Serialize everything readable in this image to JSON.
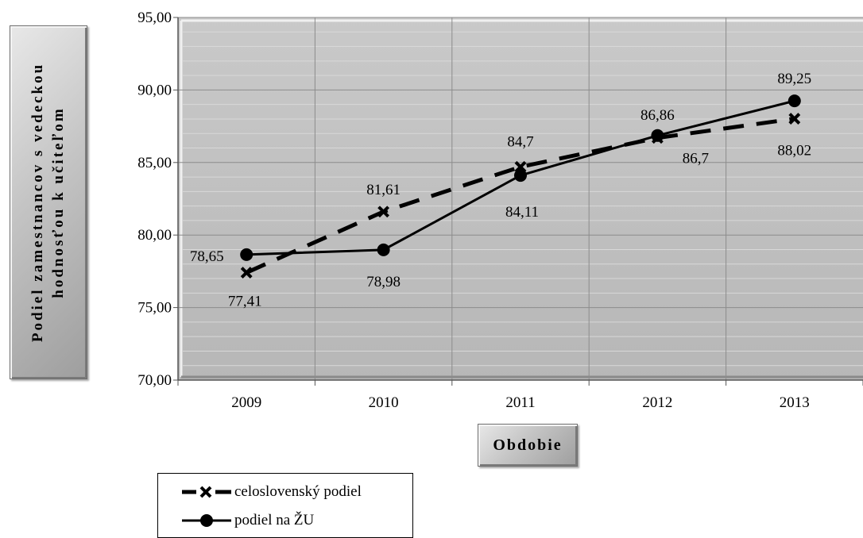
{
  "chart_data": {
    "type": "line",
    "categories": [
      "2009",
      "2010",
      "2011",
      "2012",
      "2013"
    ],
    "ylabel": "Podiel zamestnancov s vedeckou hodnosťou k učiteľom",
    "xlabel": "Obdobie",
    "ylim": [
      70,
      95
    ],
    "yticks": [
      "70,00",
      "75,00",
      "80,00",
      "85,00",
      "90,00",
      "95,00"
    ],
    "grid": true,
    "legend_position": "bottom-left",
    "series": [
      {
        "name": "celoslovenský podiel",
        "style": "dashed",
        "marker": "x",
        "color": "#000000",
        "values": [
          77.41,
          81.61,
          84.7,
          86.7,
          88.02
        ],
        "labels": [
          "77,41",
          "81,61",
          "84,7",
          "86,7",
          "88,02"
        ]
      },
      {
        "name": "podiel na ŽU",
        "style": "solid",
        "marker": "circle",
        "color": "#000000",
        "values": [
          78.65,
          78.98,
          84.11,
          86.86,
          89.25
        ],
        "labels": [
          "78,65",
          "78,98",
          "84,11",
          "86,86",
          "89,25"
        ]
      }
    ],
    "plot_background": "#c0c0c0",
    "grid_color": "#8c8c8c"
  }
}
